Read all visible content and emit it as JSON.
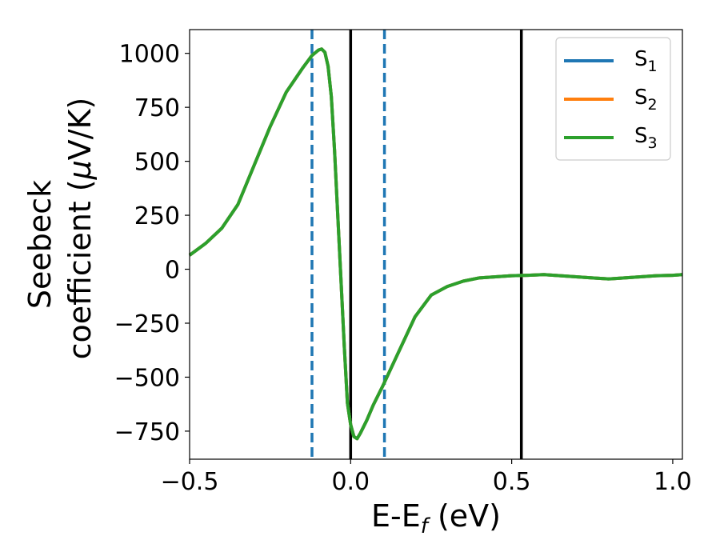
{
  "chart_data": {
    "type": "line",
    "xlabel": {
      "main": "E-E",
      "sub": "f",
      "unit": " (eV)"
    },
    "ylabel": {
      "line1": "Seebeck",
      "line2_pre": "coefficient  (",
      "mu": "μ",
      "line2_post": "V/K)"
    },
    "xlim": [
      -0.5,
      1.03
    ],
    "ylim": [
      -880,
      1110
    ],
    "xticks": [
      -0.5,
      0.0,
      0.5,
      1.0
    ],
    "xtick_labels": [
      "−0.5",
      "0.0",
      "0.5",
      "1.0"
    ],
    "yticks": [
      -750,
      -500,
      -250,
      0,
      250,
      500,
      750,
      1000
    ],
    "ytick_labels": [
      "−750",
      "−500",
      "−250",
      "0",
      "250",
      "500",
      "750",
      "1000"
    ],
    "grid": false,
    "legend_position": "top-right",
    "series": [
      {
        "name": "S",
        "sub": "1",
        "color": "#1f77b4"
      },
      {
        "name": "S",
        "sub": "2",
        "color": "#ff7f0e"
      },
      {
        "name": "S",
        "sub": "3",
        "color": "#2ca02c"
      }
    ],
    "x": [
      -0.5,
      -0.45,
      -0.4,
      -0.35,
      -0.3,
      -0.25,
      -0.2,
      -0.15,
      -0.12,
      -0.1,
      -0.09,
      -0.08,
      -0.07,
      -0.06,
      -0.05,
      -0.04,
      -0.03,
      -0.02,
      -0.01,
      0.0,
      0.01,
      0.02,
      0.03,
      0.05,
      0.07,
      0.1,
      0.15,
      0.2,
      0.25,
      0.3,
      0.35,
      0.4,
      0.45,
      0.5,
      0.55,
      0.6,
      0.65,
      0.7,
      0.75,
      0.8,
      0.85,
      0.9,
      0.95,
      1.0,
      1.03
    ],
    "y": [
      65,
      120,
      190,
      300,
      480,
      660,
      820,
      930,
      990,
      1015,
      1020,
      1005,
      940,
      800,
      550,
      250,
      -50,
      -350,
      -620,
      -720,
      -775,
      -785,
      -760,
      -700,
      -630,
      -540,
      -380,
      -220,
      -120,
      -80,
      -55,
      -40,
      -35,
      -30,
      -28,
      -25,
      -30,
      -35,
      -40,
      -45,
      -40,
      -35,
      -30,
      -28,
      -25
    ],
    "vlines": [
      {
        "x": -0.12,
        "style": "dashed",
        "color": "#1f77b4"
      },
      {
        "x": 0.105,
        "style": "dashed",
        "color": "#1f77b4"
      },
      {
        "x": 0.0,
        "style": "solid",
        "color": "#000000"
      },
      {
        "x": 0.53,
        "style": "solid",
        "color": "#000000"
      }
    ]
  }
}
